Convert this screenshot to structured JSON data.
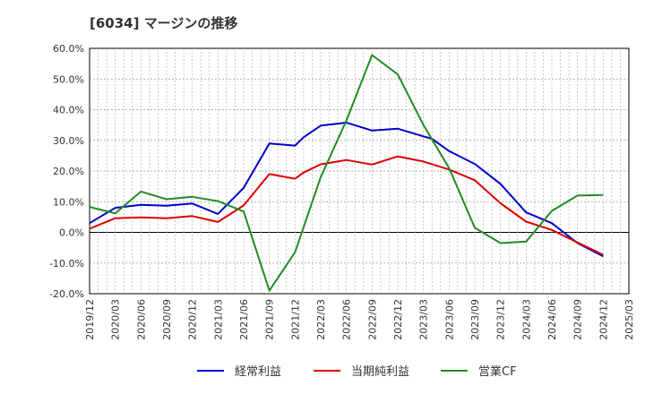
{
  "chart_data": {
    "type": "line",
    "title": "[6034]  マージンの推移",
    "xlabel": "",
    "ylabel": "",
    "ylim": [
      -20,
      60
    ],
    "y_ticks": [
      -20,
      -10,
      0,
      10,
      20,
      30,
      40,
      50,
      60
    ],
    "y_tick_labels": [
      "-20.0%",
      "-10.0%",
      "0.0%",
      "10.0%",
      "20.0%",
      "30.0%",
      "40.0%",
      "50.0%",
      "60.0%"
    ],
    "x_tick_labels": [
      "2019/12",
      "2020/03",
      "2020/06",
      "2020/09",
      "2020/12",
      "2021/03",
      "2021/06",
      "2021/09",
      "2021/12",
      "2022/03",
      "2022/06",
      "2022/09",
      "2022/12",
      "2023/03",
      "2023/06",
      "2023/09",
      "2023/12",
      "2024/03",
      "2024/06",
      "2024/09",
      "2024/12",
      "2025/03"
    ],
    "grid": true,
    "legend_position": "bottom",
    "series": [
      {
        "name": "経常利益",
        "color": "#0000cc",
        "x": [
          "2019/12",
          "2020/03",
          "2020/06",
          "2020/09",
          "2020/12",
          "2021/03",
          "2021/06",
          "2021/09",
          "2021/12",
          "2022/01",
          "2022/03",
          "2022/06",
          "2022/09",
          "2022/12",
          "2023/03",
          "2023/04",
          "2023/06",
          "2023/09",
          "2023/12",
          "2024/03",
          "2024/06",
          "2024/09",
          "2024/12"
        ],
        "values": [
          3.0,
          8.0,
          9.0,
          8.7,
          9.4,
          6.0,
          14.5,
          29.0,
          28.3,
          31.0,
          34.8,
          35.8,
          33.2,
          33.8,
          31.3,
          30.5,
          26.5,
          22.3,
          15.8,
          6.5,
          3.0,
          -3.5,
          -7.8
        ]
      },
      {
        "name": "当期純利益",
        "color": "#dd0000",
        "x": [
          "2019/12",
          "2020/03",
          "2020/06",
          "2020/09",
          "2020/12",
          "2021/03",
          "2021/06",
          "2021/09",
          "2021/12",
          "2022/01",
          "2022/03",
          "2022/06",
          "2022/09",
          "2022/12",
          "2023/03",
          "2023/06",
          "2023/09",
          "2023/12",
          "2024/03",
          "2024/06",
          "2024/09",
          "2024/12"
        ],
        "values": [
          1.2,
          4.6,
          4.9,
          4.6,
          5.3,
          3.4,
          8.8,
          19.0,
          17.5,
          19.5,
          22.2,
          23.6,
          22.1,
          24.8,
          23.1,
          20.5,
          17.0,
          9.5,
          3.5,
          0.8,
          -3.3,
          -7.3
        ]
      },
      {
        "name": "営業CF",
        "color": "#228b22",
        "x": [
          "2019/12",
          "2020/03",
          "2020/06",
          "2020/09",
          "2020/12",
          "2021/03",
          "2021/06",
          "2021/09",
          "2021/12",
          "2022/03",
          "2022/06",
          "2022/09",
          "2022/12",
          "2023/03",
          "2023/06",
          "2023/09",
          "2023/12",
          "2024/03",
          "2024/06",
          "2024/09",
          "2024/12"
        ],
        "values": [
          8.3,
          6.2,
          13.3,
          10.8,
          11.6,
          10.2,
          6.8,
          -19.0,
          -6.5,
          18.0,
          36.5,
          57.8,
          51.5,
          35.0,
          21.0,
          1.5,
          -3.5,
          -3.0,
          7.0,
          12.0,
          12.2
        ]
      }
    ]
  }
}
